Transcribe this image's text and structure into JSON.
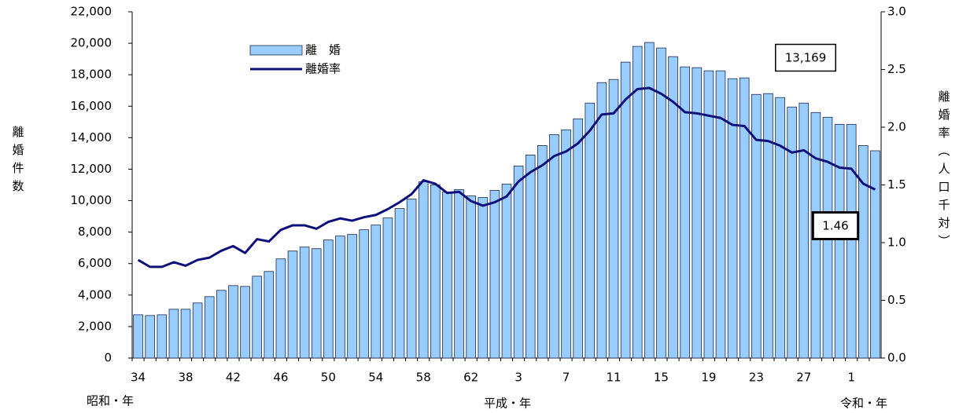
{
  "chart_data": {
    "type": "bar-line",
    "y_label": "離婚件数",
    "y2_label": "離婚率（人口千対）",
    "era_labels": [
      "昭和・年",
      "平成・年",
      "令和・年"
    ],
    "categories": [
      "34",
      null,
      null,
      null,
      "38",
      null,
      null,
      null,
      "42",
      null,
      null,
      null,
      "46",
      null,
      null,
      null,
      "50",
      null,
      null,
      null,
      "54",
      null,
      null,
      null,
      "58",
      null,
      null,
      null,
      "62",
      null,
      null,
      null,
      "3",
      null,
      null,
      null,
      "7",
      null,
      null,
      null,
      "11",
      null,
      null,
      null,
      "15",
      null,
      null,
      null,
      "19",
      null,
      null,
      null,
      "23",
      null,
      null,
      null,
      "27",
      null,
      null,
      null,
      "1",
      null,
      null
    ],
    "series": [
      {
        "name": "離　婚",
        "type": "bar",
        "color": "#99ccff",
        "values": [
          2750,
          2700,
          2750,
          3100,
          3100,
          3500,
          3900,
          4300,
          4600,
          4550,
          5200,
          5500,
          6300,
          6800,
          7050,
          6950,
          7500,
          7750,
          7850,
          8150,
          8450,
          8900,
          9500,
          10100,
          11200,
          11000,
          10550,
          10700,
          10300,
          10200,
          10650,
          11050,
          12200,
          12900,
          13500,
          14200,
          14500,
          15200,
          16200,
          17500,
          17700,
          18800,
          19800,
          20050,
          19700,
          19150,
          18500,
          18450,
          18250,
          18250,
          17750,
          17800,
          16750,
          16800,
          16550,
          15950,
          16200,
          15600,
          15300,
          14850,
          14850,
          13500,
          13169
        ],
        "value_labels": [
          null,
          null,
          null,
          null,
          null,
          null,
          null,
          null,
          null,
          null,
          null,
          null,
          null,
          null,
          null,
          null,
          null,
          null,
          null,
          null,
          null,
          null,
          null,
          null,
          null,
          null,
          null,
          null,
          null,
          null,
          null,
          null,
          null,
          null,
          null,
          null,
          null,
          null,
          null,
          null,
          null,
          null,
          null,
          null,
          null,
          null,
          null,
          null,
          null,
          null,
          null,
          null,
          null,
          null,
          null,
          null,
          null,
          null,
          null,
          null,
          null,
          null,
          "13,169"
        ]
      },
      {
        "name": "離婚率",
        "type": "line",
        "axis": "y2",
        "color": "#10107a",
        "values": [
          0.85,
          0.79,
          0.79,
          0.83,
          0.8,
          0.85,
          0.87,
          0.93,
          0.97,
          0.91,
          1.03,
          1.01,
          1.11,
          1.15,
          1.15,
          1.12,
          1.18,
          1.21,
          1.19,
          1.22,
          1.24,
          1.29,
          1.35,
          1.42,
          1.54,
          1.51,
          1.43,
          1.44,
          1.36,
          1.32,
          1.35,
          1.4,
          1.53,
          1.61,
          1.67,
          1.75,
          1.79,
          1.86,
          1.97,
          2.11,
          2.12,
          2.24,
          2.33,
          2.34,
          2.29,
          2.22,
          2.13,
          2.12,
          2.1,
          2.08,
          2.02,
          2.01,
          1.89,
          1.88,
          1.84,
          1.78,
          1.8,
          1.73,
          1.7,
          1.65,
          1.64,
          1.51,
          1.46
        ],
        "value_labels": [
          null,
          null,
          null,
          null,
          null,
          null,
          null,
          null,
          null,
          null,
          null,
          null,
          null,
          null,
          null,
          null,
          null,
          null,
          null,
          null,
          null,
          null,
          null,
          null,
          null,
          null,
          null,
          null,
          null,
          null,
          null,
          null,
          null,
          null,
          null,
          null,
          null,
          null,
          null,
          null,
          null,
          null,
          null,
          null,
          null,
          null,
          null,
          null,
          null,
          null,
          null,
          null,
          null,
          null,
          null,
          null,
          null,
          null,
          null,
          null,
          null,
          null,
          "1.46"
        ]
      }
    ],
    "ylim": [
      0,
      22000
    ],
    "yticks": [
      0,
      {
        "value": 2000,
        "label": "2,000"
      },
      {
        "value": 4000,
        "label": "4,000"
      },
      {
        "value": 6000,
        "label": "6,000"
      },
      {
        "value": 8000,
        "label": "8,000"
      },
      {
        "value": 10000,
        "label": "10,000"
      },
      {
        "value": 12000,
        "label": "12,000"
      },
      {
        "value": 14000,
        "label": "14,000"
      },
      {
        "value": 16000,
        "label": "16,000"
      },
      {
        "value": 18000,
        "label": "18,000"
      },
      {
        "value": 20000,
        "label": "20,000"
      },
      {
        "value": 22000,
        "label": "22,000"
      }
    ],
    "y2lim": [
      0,
      3
    ],
    "y2ticks": [
      {
        "value": 0,
        "label": "0.0"
      },
      0.5,
      {
        "value": 1,
        "label": "1.0"
      },
      1.5,
      {
        "value": 2,
        "label": "2.0"
      },
      2.5,
      {
        "value": 3,
        "label": "3.0"
      }
    ],
    "grid": false
  }
}
